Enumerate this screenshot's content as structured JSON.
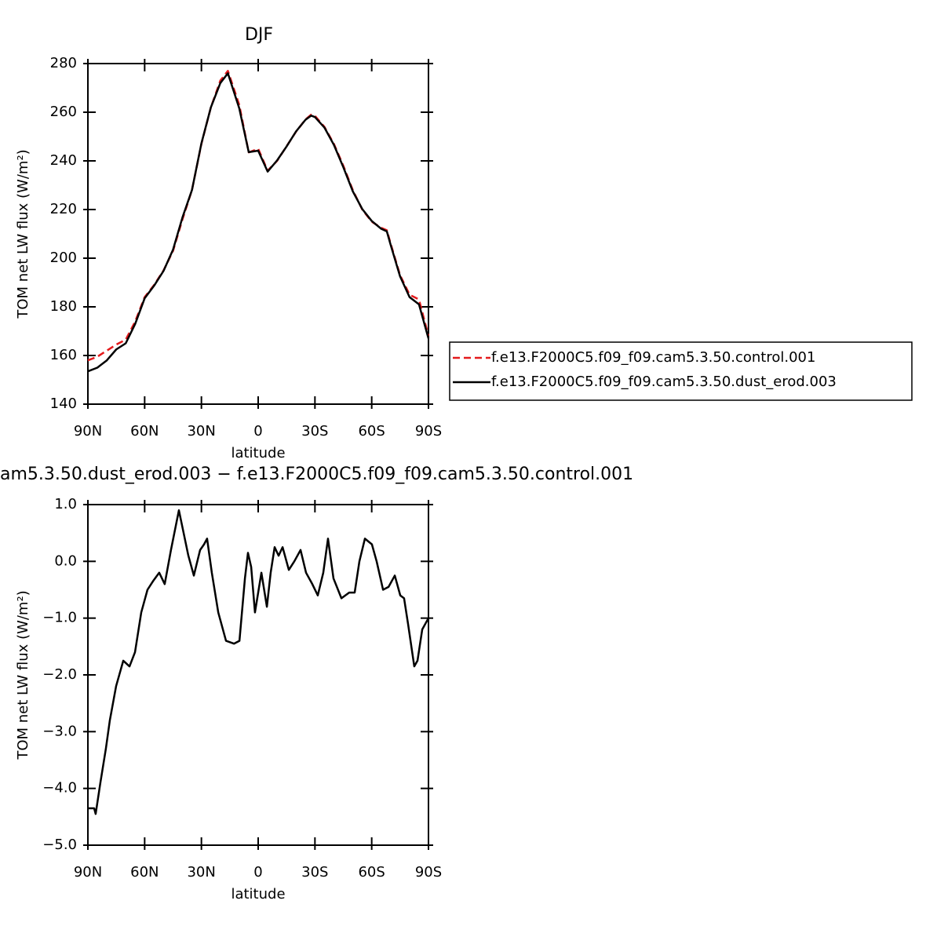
{
  "chart_data": [
    {
      "type": "line",
      "title": "DJF",
      "xlabel": "latitude",
      "ylabel": "TOM net LW flux (W/m²)",
      "x": [
        90,
        85,
        80,
        75,
        70,
        65,
        60,
        55,
        50,
        45,
        40,
        35,
        30,
        25,
        20,
        16,
        10,
        5,
        0,
        -5,
        -10,
        -15,
        -20,
        -25,
        -28,
        -30,
        -35,
        -40,
        -45,
        -50,
        -55,
        -60,
        -65,
        -68,
        -70,
        -75,
        -80,
        -85,
        -90
      ],
      "series": [
        {
          "name": "f.e13.F2000C5.f09_f09.cam5.3.50.control.001",
          "color": "#e41a1c",
          "linestyle": "dashed",
          "values": [
            158,
            159.5,
            162,
            164.5,
            166.5,
            174,
            184,
            189,
            195,
            203,
            216,
            228,
            247,
            262,
            273,
            277,
            263,
            243.5,
            245,
            236,
            240,
            246,
            252,
            257,
            259,
            258.5,
            254,
            247,
            238,
            228,
            220,
            215,
            212.5,
            211.5,
            206,
            193,
            185,
            183,
            168
          ]
        },
        {
          "name": "f.e13.F2000C5.f09_f09.cam5.3.50.dust_erod.003",
          "color": "#000000",
          "linestyle": "solid",
          "values": [
            153.5,
            155,
            158,
            162.5,
            165,
            173,
            183.5,
            188.7,
            194.8,
            203.5,
            216.8,
            228,
            247.2,
            262,
            272,
            276,
            261.6,
            243.6,
            244.2,
            235.6,
            240.2,
            245.9,
            252.1,
            256.9,
            258.6,
            258,
            253.7,
            246.6,
            237.4,
            227.5,
            220.2,
            215.3,
            212.1,
            211,
            205.5,
            192.5,
            184,
            181,
            167
          ]
        }
      ],
      "xlim": [
        90,
        -90
      ],
      "xticks": [
        {
          "value": 90,
          "label": "90N"
        },
        {
          "value": 60,
          "label": "60N"
        },
        {
          "value": 30,
          "label": "30N"
        },
        0,
        {
          "value": -30,
          "label": "30S"
        },
        {
          "value": -60,
          "label": "60S"
        },
        {
          "value": -90,
          "label": "90S"
        }
      ],
      "ylim": [
        140,
        280
      ],
      "yticks": [
        140,
        160,
        180,
        200,
        220,
        240,
        260,
        280
      ],
      "legend": "right"
    },
    {
      "type": "line",
      "title": "am5.3.50.dust_erod.003 − f.e13.F2000C5.f09_f09.cam5.3.50.control.001",
      "xlabel": "latitude",
      "ylabel": "TOM net LW flux (W/m²)",
      "x": [
        90,
        86.7,
        85.9,
        83.4,
        80.5,
        78.4,
        75.1,
        71.3,
        68.0,
        65.1,
        61.8,
        58.5,
        55.6,
        52.3,
        49.4,
        46.1,
        41.9,
        36.9,
        34.0,
        30.7,
        28.6,
        27.0,
        24.5,
        21.1,
        17.0,
        12.8,
        9.9,
        7.0,
        5.4,
        3.7,
        1.7,
        -1.7,
        -4.6,
        -6.6,
        -8.7,
        -10.8,
        -12.9,
        -16.2,
        -19.1,
        -22.4,
        -25.3,
        -28.6,
        -31.5,
        -34.4,
        -36.9,
        -39.8,
        -44.0,
        -48.1,
        -51.0,
        -53.5,
        -56.4,
        -60.1,
        -62.6,
        -66.0,
        -68.9,
        -72.2,
        -75.1,
        -77.1,
        -79.2,
        -82.5,
        -84.2,
        -86.7,
        -90
      ],
      "series": [
        {
          "name": null,
          "color": "#000000",
          "linestyle": "solid",
          "values": [
            -4.35,
            -4.35,
            -4.45,
            -3.9,
            -3.3,
            -2.8,
            -2.2,
            -1.75,
            -1.85,
            -1.6,
            -0.9,
            -0.5,
            -0.35,
            -0.2,
            -0.4,
            0.2,
            0.9,
            0.1,
            -0.25,
            0.2,
            0.3,
            0.4,
            -0.2,
            -0.9,
            -1.4,
            -1.45,
            -1.4,
            -0.3,
            0.15,
            -0.1,
            -0.9,
            -0.2,
            -0.8,
            -0.2,
            0.25,
            0.1,
            0.25,
            -0.15,
            0.0,
            0.2,
            -0.2,
            -0.4,
            -0.6,
            -0.2,
            0.4,
            -0.3,
            -0.65,
            -0.55,
            -0.55,
            0.0,
            0.4,
            0.3,
            0.0,
            -0.5,
            -0.45,
            -0.25,
            -0.6,
            -0.65,
            -1.1,
            -1.85,
            -1.75,
            -1.2,
            -1.0
          ]
        }
      ],
      "xlim": [
        90,
        -90
      ],
      "xticks": [
        {
          "value": 90,
          "label": "90N"
        },
        {
          "value": 60,
          "label": "60N"
        },
        {
          "value": 30,
          "label": "30N"
        },
        0,
        {
          "value": -30,
          "label": "30S"
        },
        {
          "value": -60,
          "label": "60S"
        },
        {
          "value": -90,
          "label": "90S"
        }
      ],
      "ylim": [
        -5,
        1
      ],
      "yticks": [
        {
          "value": -5,
          "label": "−5.0"
        },
        {
          "value": -4,
          "label": "−4.0"
        },
        {
          "value": -3,
          "label": "−3.0"
        },
        {
          "value": -2,
          "label": "−2.0"
        },
        {
          "value": -1,
          "label": "−1.0"
        },
        {
          "value": 0,
          "label": "0.0"
        },
        {
          "value": 1,
          "label": "1.0"
        }
      ]
    }
  ]
}
